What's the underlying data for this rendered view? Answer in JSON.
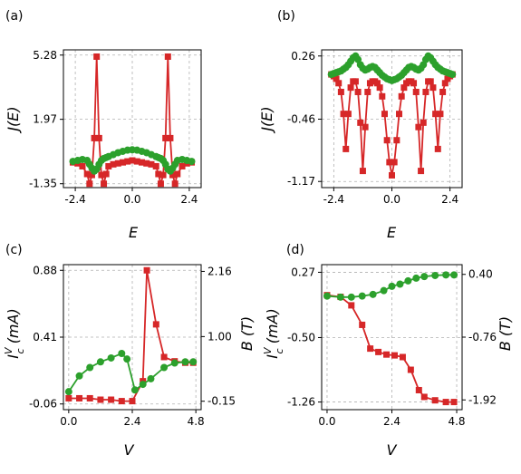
{
  "colors": {
    "red": "#d62728",
    "green": "#2ca02c",
    "grid": "#b0b0b0"
  },
  "chart_data": [
    {
      "panel": "(a)",
      "type": "line",
      "xlabel": "E",
      "ylabel": "J(E)",
      "xlim": [
        -2.9,
        2.9
      ],
      "ylim": [
        -1.55,
        5.55
      ],
      "xticks": [
        "-2.4",
        "0.0",
        "2.4"
      ],
      "xtick_values": [
        -2.4,
        0,
        2.4
      ],
      "yticks": [
        "-1.35",
        "1.97",
        "5.28"
      ],
      "ytick_values": [
        -1.35,
        1.97,
        5.28
      ],
      "grid": true,
      "series": [
        {
          "color": "red",
          "marker": "square",
          "x": [
            -2.5,
            -2.3,
            -2.1,
            -1.9,
            -1.8,
            -1.7,
            -1.6,
            -1.5,
            -1.4,
            -1.3,
            -1.2,
            -1.1,
            -1.0,
            -0.8,
            -0.6,
            -0.4,
            -0.2,
            0.0,
            0.2,
            0.4,
            0.6,
            0.8,
            1.0,
            1.1,
            1.2,
            1.3,
            1.4,
            1.5,
            1.6,
            1.7,
            1.8,
            1.9,
            2.1,
            2.3,
            2.5
          ],
          "y": [
            -0.25,
            -0.3,
            -0.45,
            -0.85,
            -1.35,
            -0.9,
            1.0,
            5.2,
            1.0,
            -0.9,
            -1.35,
            -0.85,
            -0.45,
            -0.35,
            -0.3,
            -0.25,
            -0.2,
            -0.15,
            -0.2,
            -0.25,
            -0.3,
            -0.35,
            -0.45,
            -0.85,
            -1.35,
            -0.9,
            1.0,
            5.2,
            1.0,
            -0.9,
            -1.35,
            -0.85,
            -0.45,
            -0.3,
            -0.25
          ]
        },
        {
          "color": "green",
          "marker": "circle",
          "x": [
            -2.5,
            -2.3,
            -2.1,
            -1.9,
            -1.8,
            -1.7,
            -1.6,
            -1.5,
            -1.4,
            -1.3,
            -1.2,
            -1.1,
            -1.0,
            -0.8,
            -0.6,
            -0.4,
            -0.2,
            0.0,
            0.2,
            0.4,
            0.6,
            0.8,
            1.0,
            1.1,
            1.2,
            1.3,
            1.4,
            1.5,
            1.6,
            1.7,
            1.8,
            1.9,
            2.1,
            2.3,
            2.5
          ],
          "y": [
            -0.2,
            -0.15,
            -0.1,
            -0.15,
            -0.35,
            -0.55,
            -0.7,
            -0.6,
            -0.35,
            -0.15,
            -0.05,
            0.0,
            0.05,
            0.15,
            0.25,
            0.32,
            0.38,
            0.4,
            0.38,
            0.32,
            0.25,
            0.15,
            0.05,
            0.0,
            -0.05,
            -0.15,
            -0.35,
            -0.6,
            -0.7,
            -0.55,
            -0.35,
            -0.15,
            -0.1,
            -0.15,
            -0.2
          ]
        }
      ]
    },
    {
      "panel": "(b)",
      "type": "line",
      "xlabel": "E",
      "ylabel": "J(E)",
      "xlim": [
        -2.9,
        2.9
      ],
      "ylim": [
        -1.24,
        0.33
      ],
      "xticks": [
        "-2.4",
        "0.0",
        "2.4"
      ],
      "xtick_values": [
        -2.4,
        0,
        2.4
      ],
      "yticks": [
        "-1.17",
        "-0.46",
        "0.26"
      ],
      "ytick_values": [
        -1.17,
        -0.46,
        0.26
      ],
      "grid": true,
      "series": [
        {
          "color": "red",
          "marker": "square",
          "x": [
            -2.5,
            -2.4,
            -2.3,
            -2.2,
            -2.1,
            -2.0,
            -1.9,
            -1.8,
            -1.7,
            -1.6,
            -1.5,
            -1.4,
            -1.3,
            -1.2,
            -1.1,
            -1.0,
            -0.9,
            -0.8,
            -0.7,
            -0.6,
            -0.5,
            -0.4,
            -0.3,
            -0.2,
            -0.1,
            0.0,
            0.1,
            0.2,
            0.3,
            0.4,
            0.5,
            0.6,
            0.7,
            0.8,
            0.9,
            1.0,
            1.1,
            1.2,
            1.3,
            1.4,
            1.5,
            1.6,
            1.7,
            1.8,
            1.9,
            2.0,
            2.1,
            2.2,
            2.3,
            2.4,
            2.5
          ],
          "y": [
            0.05,
            0.03,
            0.0,
            -0.05,
            -0.15,
            -0.4,
            -0.8,
            -0.4,
            -0.1,
            -0.03,
            -0.03,
            -0.15,
            -0.5,
            -1.05,
            -0.55,
            -0.15,
            -0.05,
            -0.03,
            -0.03,
            -0.05,
            -0.1,
            -0.2,
            -0.4,
            -0.7,
            -0.95,
            -1.1,
            -0.95,
            -0.7,
            -0.4,
            -0.2,
            -0.1,
            -0.05,
            -0.03,
            -0.03,
            -0.05,
            -0.15,
            -0.55,
            -1.05,
            -0.5,
            -0.15,
            -0.03,
            -0.03,
            -0.1,
            -0.4,
            -0.8,
            -0.4,
            -0.15,
            -0.05,
            0.0,
            0.03,
            0.05
          ]
        },
        {
          "color": "green",
          "marker": "circle",
          "x": [
            -2.5,
            -2.4,
            -2.3,
            -2.2,
            -2.1,
            -2.0,
            -1.9,
            -1.8,
            -1.7,
            -1.6,
            -1.5,
            -1.4,
            -1.3,
            -1.2,
            -1.1,
            -1.0,
            -0.9,
            -0.8,
            -0.7,
            -0.6,
            -0.5,
            -0.4,
            -0.3,
            -0.2,
            -0.1,
            0.0,
            0.1,
            0.2,
            0.3,
            0.4,
            0.5,
            0.6,
            0.7,
            0.8,
            0.9,
            1.0,
            1.1,
            1.2,
            1.3,
            1.4,
            1.5,
            1.6,
            1.7,
            1.8,
            1.9,
            2.0,
            2.1,
            2.2,
            2.3,
            2.4,
            2.5
          ],
          "y": [
            0.05,
            0.06,
            0.07,
            0.08,
            0.09,
            0.11,
            0.13,
            0.16,
            0.2,
            0.24,
            0.26,
            0.22,
            0.16,
            0.12,
            0.1,
            0.11,
            0.13,
            0.14,
            0.13,
            0.1,
            0.07,
            0.04,
            0.02,
            0.0,
            -0.01,
            -0.02,
            -0.01,
            0.0,
            0.02,
            0.04,
            0.07,
            0.1,
            0.13,
            0.14,
            0.13,
            0.11,
            0.1,
            0.12,
            0.16,
            0.22,
            0.26,
            0.24,
            0.2,
            0.16,
            0.13,
            0.11,
            0.09,
            0.08,
            0.07,
            0.06,
            0.05
          ]
        }
      ]
    },
    {
      "panel": "(c)",
      "type": "line",
      "xlabel": "V",
      "ylabel": "I_c^V (mA)",
      "ylabel_main": "I",
      "ylabel_sup": "V",
      "ylabel_sub": "c",
      "ylabel_unit": " (mA)",
      "ylabel_right": "B (T)",
      "xlim": [
        -0.2,
        5.0
      ],
      "ylim": [
        -0.1,
        0.92
      ],
      "ylim_right": [
        -0.3,
        2.28
      ],
      "xticks": [
        "0.0",
        "2.4",
        "4.8"
      ],
      "xtick_values": [
        0,
        2.4,
        4.8
      ],
      "yticks": [
        "-0.06",
        "0.41",
        "0.88"
      ],
      "ytick_values": [
        -0.06,
        0.41,
        0.88
      ],
      "yticks_right": [
        "-0.15",
        "1.00",
        "2.16"
      ],
      "ytick_right_values": [
        -0.15,
        1.0,
        2.16
      ],
      "grid": true,
      "series": [
        {
          "color": "red",
          "marker": "square",
          "axis": "left",
          "x": [
            0.0,
            0.4,
            0.8,
            1.2,
            1.6,
            2.0,
            2.4,
            2.8,
            2.95,
            3.3,
            3.6,
            4.0,
            4.4,
            4.7
          ],
          "y": [
            -0.02,
            -0.02,
            -0.02,
            -0.03,
            -0.03,
            -0.04,
            -0.04,
            0.1,
            0.88,
            0.5,
            0.27,
            0.24,
            0.23,
            0.23
          ]
        },
        {
          "color": "green",
          "marker": "circle",
          "axis": "right",
          "x": [
            0.0,
            0.4,
            0.8,
            1.2,
            1.6,
            2.0,
            2.2,
            2.5,
            2.8,
            3.1,
            3.6,
            4.0,
            4.4,
            4.7
          ],
          "y": [
            0.02,
            0.3,
            0.45,
            0.55,
            0.62,
            0.7,
            0.6,
            0.05,
            0.15,
            0.25,
            0.45,
            0.53,
            0.55,
            0.55
          ]
        }
      ]
    },
    {
      "panel": "(d)",
      "type": "line",
      "xlabel": "V",
      "ylabel": "I_c^V (mA)",
      "ylabel_main": "I",
      "ylabel_sup": "V",
      "ylabel_sub": "c",
      "ylabel_unit": " (mA)",
      "ylabel_right": "B (T)",
      "xlim": [
        -0.2,
        5.0
      ],
      "ylim": [
        -1.35,
        0.36
      ],
      "ylim_right": [
        -2.1,
        0.58
      ],
      "xticks": [
        "0.0",
        "2.4",
        "4.8"
      ],
      "xtick_values": [
        0,
        2.4,
        4.8
      ],
      "yticks": [
        "-1.26",
        "-0.50",
        "0.27"
      ],
      "ytick_values": [
        -1.26,
        -0.5,
        0.27
      ],
      "yticks_right": [
        "-1.92",
        "-0.76",
        "0.40"
      ],
      "ytick_right_values": [
        -1.92,
        -0.76,
        0.4
      ],
      "grid": true,
      "series": [
        {
          "color": "red",
          "marker": "square",
          "axis": "left",
          "x": [
            0.0,
            0.5,
            0.9,
            1.3,
            1.6,
            1.9,
            2.2,
            2.5,
            2.8,
            3.1,
            3.4,
            3.6,
            4.0,
            4.4,
            4.7
          ],
          "y": [
            0.0,
            -0.02,
            -0.12,
            -0.35,
            -0.63,
            -0.67,
            -0.7,
            -0.71,
            -0.73,
            -0.88,
            -1.12,
            -1.2,
            -1.24,
            -1.26,
            -1.26
          ]
        },
        {
          "color": "green",
          "marker": "circle",
          "axis": "right",
          "x": [
            0.0,
            0.5,
            0.9,
            1.3,
            1.7,
            2.1,
            2.4,
            2.7,
            3.0,
            3.3,
            3.6,
            4.0,
            4.4,
            4.7
          ],
          "y": [
            0.0,
            -0.02,
            -0.02,
            0.0,
            0.03,
            0.1,
            0.18,
            0.22,
            0.28,
            0.33,
            0.36,
            0.38,
            0.39,
            0.39
          ]
        }
      ]
    }
  ]
}
